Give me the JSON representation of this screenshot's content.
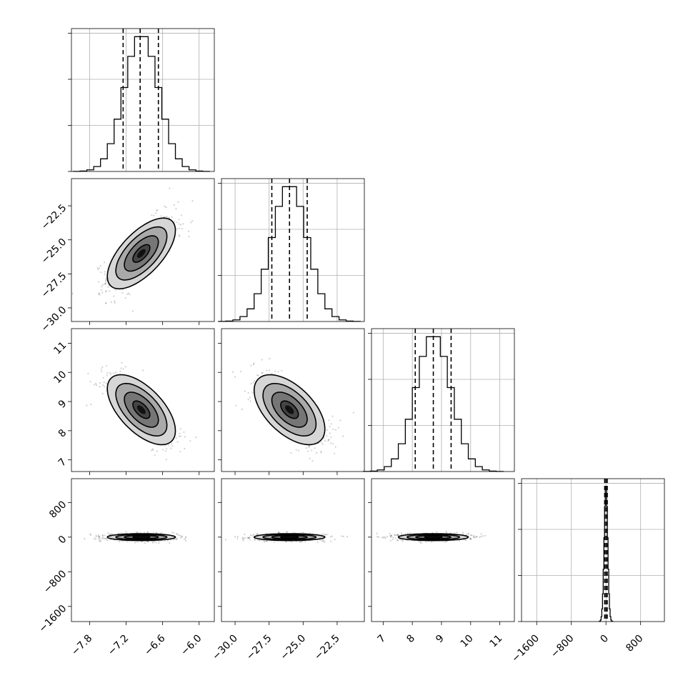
{
  "chart_data": {
    "type": "corner",
    "parameters": [
      {
        "range": [
          -8.1,
          -5.75
        ],
        "ticks": [
          -7.8,
          -7.2,
          -6.6,
          -6.0
        ],
        "tick_labels": [
          "−7.8",
          "−7.2",
          "−6.6",
          "−6.0"
        ],
        "mean": -6.95,
        "sd": 0.28,
        "quantiles": [
          -7.25,
          -6.97,
          -6.67
        ]
      },
      {
        "range": [
          -31.0,
          -20.5
        ],
        "ticks": [
          -30.0,
          -27.5,
          -25.0,
          -22.5
        ],
        "tick_labels": [
          "−30.0",
          "−27.5",
          "−25.0",
          "−22.5"
        ],
        "mean": -26.0,
        "sd": 1.3,
        "quantiles": [
          -27.3,
          -26.0,
          -24.7
        ]
      },
      {
        "range": [
          6.6,
          11.5
        ],
        "ticks": [
          7,
          8,
          9,
          10,
          11
        ],
        "tick_labels": [
          "7",
          "8",
          "9",
          "10",
          "11"
        ],
        "mean": 8.72,
        "sd": 0.6,
        "quantiles": [
          8.1,
          8.72,
          9.33
        ]
      },
      {
        "range": [
          -1950,
          1350
        ],
        "ticks": [
          -1600,
          -800,
          0,
          800
        ],
        "tick_labels": [
          "−1600",
          "−800",
          "0",
          "800"
        ],
        "mean": 0,
        "sd": 40,
        "quantiles": [
          -30,
          0,
          30
        ]
      }
    ],
    "hist_bins": 20,
    "correlations": [
      {
        "i": 1,
        "j": 0,
        "rho": 0.65
      },
      {
        "i": 2,
        "j": 0,
        "rho": -0.6
      },
      {
        "i": 2,
        "j": 1,
        "rho": -0.55
      },
      {
        "i": 3,
        "j": 0,
        "rho": 0.0
      },
      {
        "i": 3,
        "j": 1,
        "rho": 0.0
      },
      {
        "i": 3,
        "j": 2,
        "rho": 0.0
      }
    ],
    "contour_levels_sigma": [
      0.5,
      1.0,
      1.5,
      2.0
    ],
    "grid": true,
    "xlabel": "",
    "ylabel": "",
    "title": ""
  }
}
